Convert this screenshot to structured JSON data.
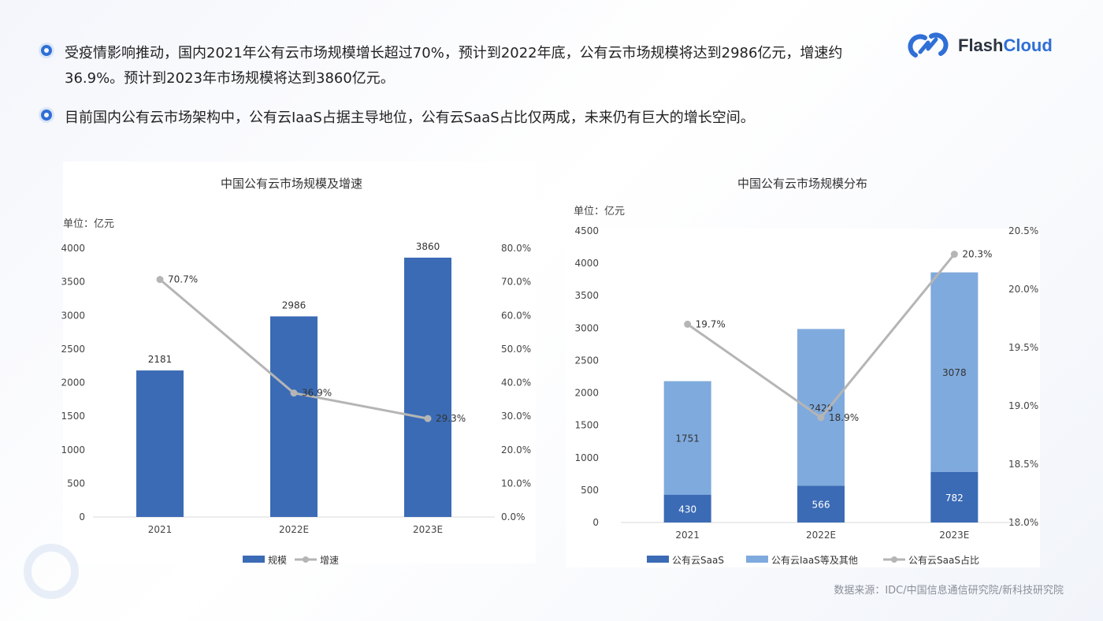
{
  "bullets": [
    "受疫情影响推动，国内2021年公有云市场规模增长超过70%，预计到2022年底，公有云市场规模将达到2986亿元，增速约36.9%。预计到2023年市场规模将达到3860亿元。",
    "目前国内公有云市场架构中，公有云IaaS占据主导地位，公有云SaaS占比仅两成，未来仍有巨大的增长空间。"
  ],
  "logo": {
    "part1": "Flash",
    "part2": "Cloud"
  },
  "source": "数据来源：IDC/中国信息通信研究院/新科技研究院",
  "chart_data": [
    {
      "type": "bar",
      "title": "中国公有云市场规模及增速",
      "unit": "单位：亿元",
      "categories": [
        "2021",
        "2022E",
        "2023E"
      ],
      "ylim": [
        0,
        4000
      ],
      "yticks": [
        "0",
        "500",
        "1000",
        "1500",
        "2000",
        "2500",
        "3000",
        "3500",
        "4000"
      ],
      "y2lim": [
        0,
        80
      ],
      "y2ticks": [
        "0.0%",
        "10.0%",
        "20.0%",
        "30.0%",
        "40.0%",
        "50.0%",
        "60.0%",
        "70.0%",
        "80.0%"
      ],
      "series": [
        {
          "name": "规模",
          "type": "bar",
          "values": [
            2181,
            2986,
            3860
          ],
          "labels": [
            "2181",
            "2986",
            "3860"
          ],
          "color": "#3b6bb5"
        },
        {
          "name": "增速",
          "type": "line",
          "axis": "right",
          "values": [
            70.7,
            36.9,
            29.3
          ],
          "labels": [
            "70.7%",
            "36.9%",
            "29.3%"
          ],
          "color": "#b5b5b5"
        }
      ],
      "legend_position": "bottom"
    },
    {
      "type": "bar",
      "stacked": true,
      "title": "中国公有云市场规模分布",
      "unit": "单位：亿元",
      "categories": [
        "2021",
        "2022E",
        "2023E"
      ],
      "ylim": [
        0,
        4500
      ],
      "yticks": [
        "0",
        "500",
        "1000",
        "1500",
        "2000",
        "2500",
        "3000",
        "3500",
        "4000",
        "4500"
      ],
      "y2lim": [
        18.0,
        20.5
      ],
      "y2ticks": [
        "18.0%",
        "18.5%",
        "19.0%",
        "19.5%",
        "20.0%",
        "20.5%"
      ],
      "series": [
        {
          "name": "公有云SaaS",
          "type": "bar",
          "values": [
            430,
            566,
            782
          ],
          "labels": [
            "430",
            "566",
            "782"
          ],
          "color": "#3b6bb5"
        },
        {
          "name": "公有云IaaS等及其他",
          "type": "bar",
          "values": [
            1751,
            2420,
            3078
          ],
          "labels": [
            "1751",
            "2420",
            "3078"
          ],
          "color": "#7faadd"
        },
        {
          "name": "公有云SaaS占比",
          "type": "line",
          "axis": "right",
          "values": [
            19.7,
            18.9,
            20.3
          ],
          "labels": [
            "19.7%",
            "18.9%",
            "20.3%"
          ],
          "color": "#b5b5b5"
        }
      ],
      "legend_position": "bottom"
    }
  ]
}
